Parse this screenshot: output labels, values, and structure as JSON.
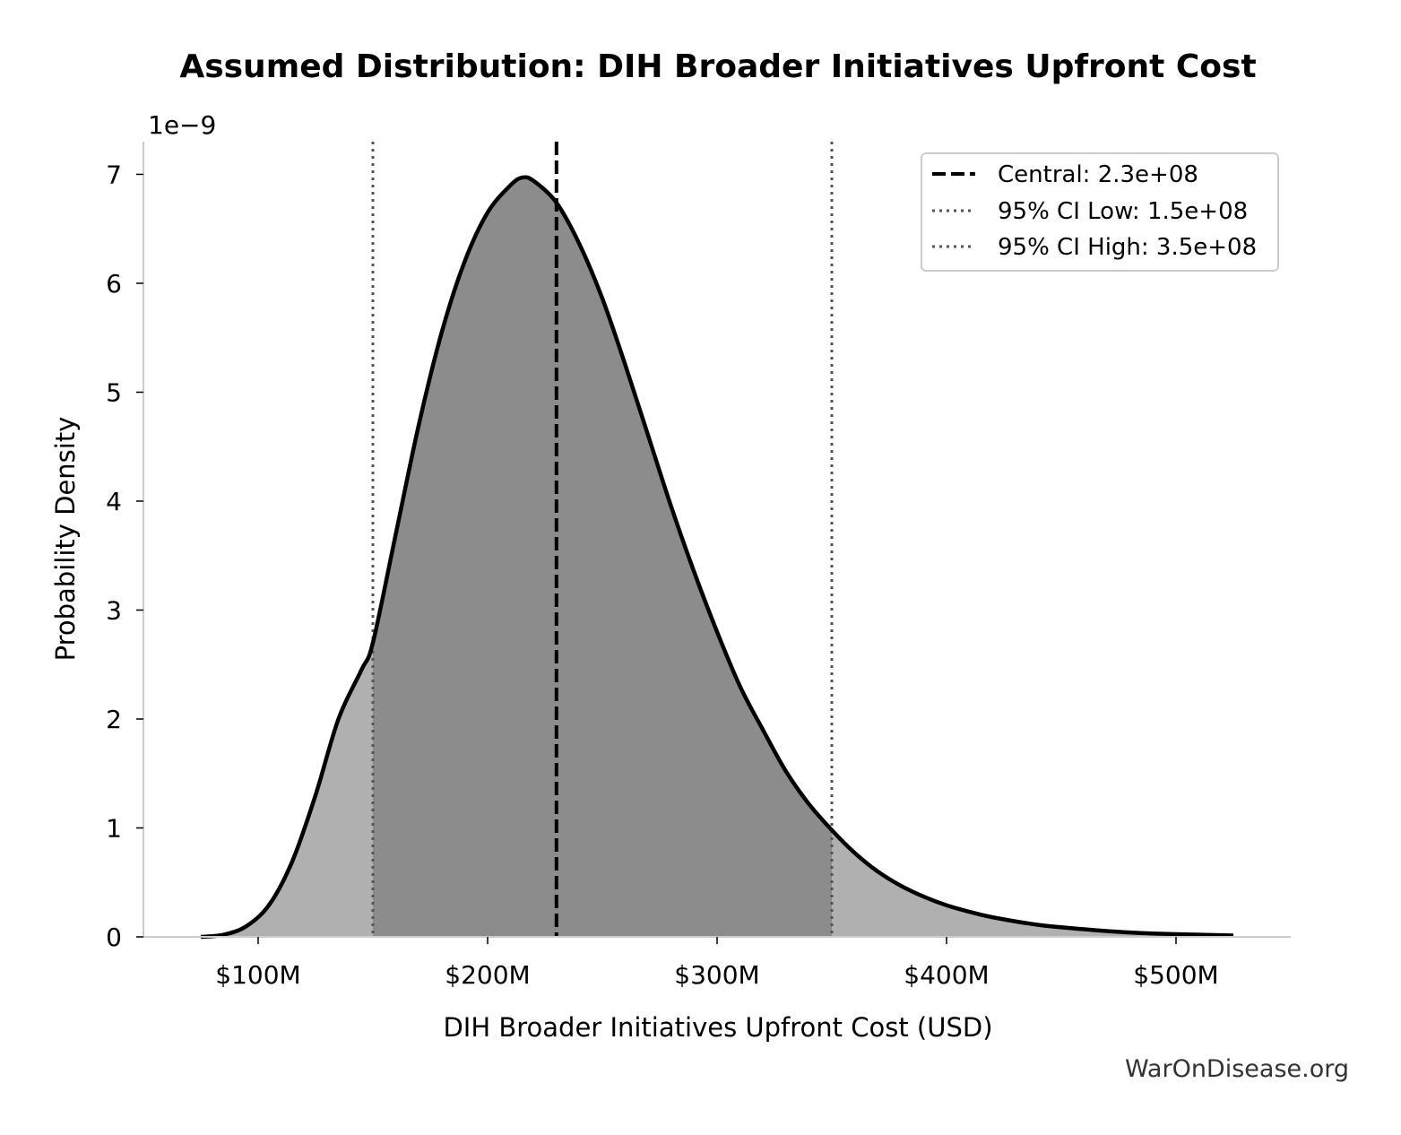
{
  "chart_data": {
    "type": "area",
    "title": "Assumed Distribution: DIH Broader Initiatives Upfront Cost",
    "xlabel": "DIH Broader Initiatives Upfront Cost (USD)",
    "ylabel": "Probability Density",
    "y_offset_text": "1e−9",
    "xlim": [
      50000000,
      550000000
    ],
    "ylim": [
      0,
      7.3e-09
    ],
    "x_ticks": [
      {
        "value": 100000000,
        "label": "$100M"
      },
      {
        "value": 200000000,
        "label": "$200M"
      },
      {
        "value": 300000000,
        "label": "$300M"
      },
      {
        "value": 400000000,
        "label": "$400M"
      },
      {
        "value": 500000000,
        "label": "$500M"
      }
    ],
    "y_ticks": [
      {
        "value": 0,
        "label": "0"
      },
      {
        "value": 1e-09,
        "label": "1"
      },
      {
        "value": 2e-09,
        "label": "2"
      },
      {
        "value": 3e-09,
        "label": "3"
      },
      {
        "value": 4e-09,
        "label": "4"
      },
      {
        "value": 5e-09,
        "label": "5"
      },
      {
        "value": 6e-09,
        "label": "6"
      },
      {
        "value": 7e-09,
        "label": "7"
      }
    ],
    "series": [
      {
        "x": [
          75000000,
          85000000,
          95000000,
          105000000,
          115000000,
          125000000,
          135000000,
          145000000,
          150000000,
          160000000,
          170000000,
          180000000,
          190000000,
          200000000,
          210000000,
          215000000,
          220000000,
          230000000,
          240000000,
          250000000,
          260000000,
          270000000,
          280000000,
          290000000,
          300000000,
          310000000,
          320000000,
          330000000,
          340000000,
          350000000,
          360000000,
          370000000,
          380000000,
          390000000,
          400000000,
          410000000,
          420000000,
          440000000,
          460000000,
          480000000,
          500000000,
          525000000
        ],
        "y": [
          0.0,
          2e-11,
          1e-10,
          3e-10,
          7e-10,
          1.3e-09,
          2e-09,
          2.45e-09,
          2.7e-09,
          3.7e-09,
          4.7e-09,
          5.55e-09,
          6.2e-09,
          6.65e-09,
          6.9e-09,
          6.97e-09,
          6.94e-09,
          6.74e-09,
          6.36e-09,
          5.86e-09,
          5.25e-09,
          4.6e-09,
          3.95e-09,
          3.35e-09,
          2.8e-09,
          2.3e-09,
          1.9e-09,
          1.52e-09,
          1.22e-09,
          9.8e-10,
          7.7e-10,
          6e-10,
          4.7e-10,
          3.7e-10,
          2.9e-10,
          2.3e-10,
          1.8e-10,
          1.1e-10,
          7e-11,
          4e-11,
          2.5e-11,
          1.2e-11
        ]
      }
    ],
    "reference_lines": [
      {
        "label": "Central: 2.3e+08",
        "x": 230000000,
        "style": "dashed"
      },
      {
        "label": "95% CI Low: 1.5e+08",
        "x": 150000000,
        "style": "dotted"
      },
      {
        "label": "95% CI High: 3.5e+08",
        "x": 350000000,
        "style": "dotted"
      }
    ],
    "grid": false,
    "legend_position": "top-right"
  },
  "colors": {
    "curve": "#000000",
    "fill_outer": "#b0b0b0",
    "fill_inner": "#8c8c8c",
    "ci_line": "#555555",
    "central_line": "#000000",
    "spine": "#cccccc"
  },
  "watermark": "WarOnDisease.org"
}
